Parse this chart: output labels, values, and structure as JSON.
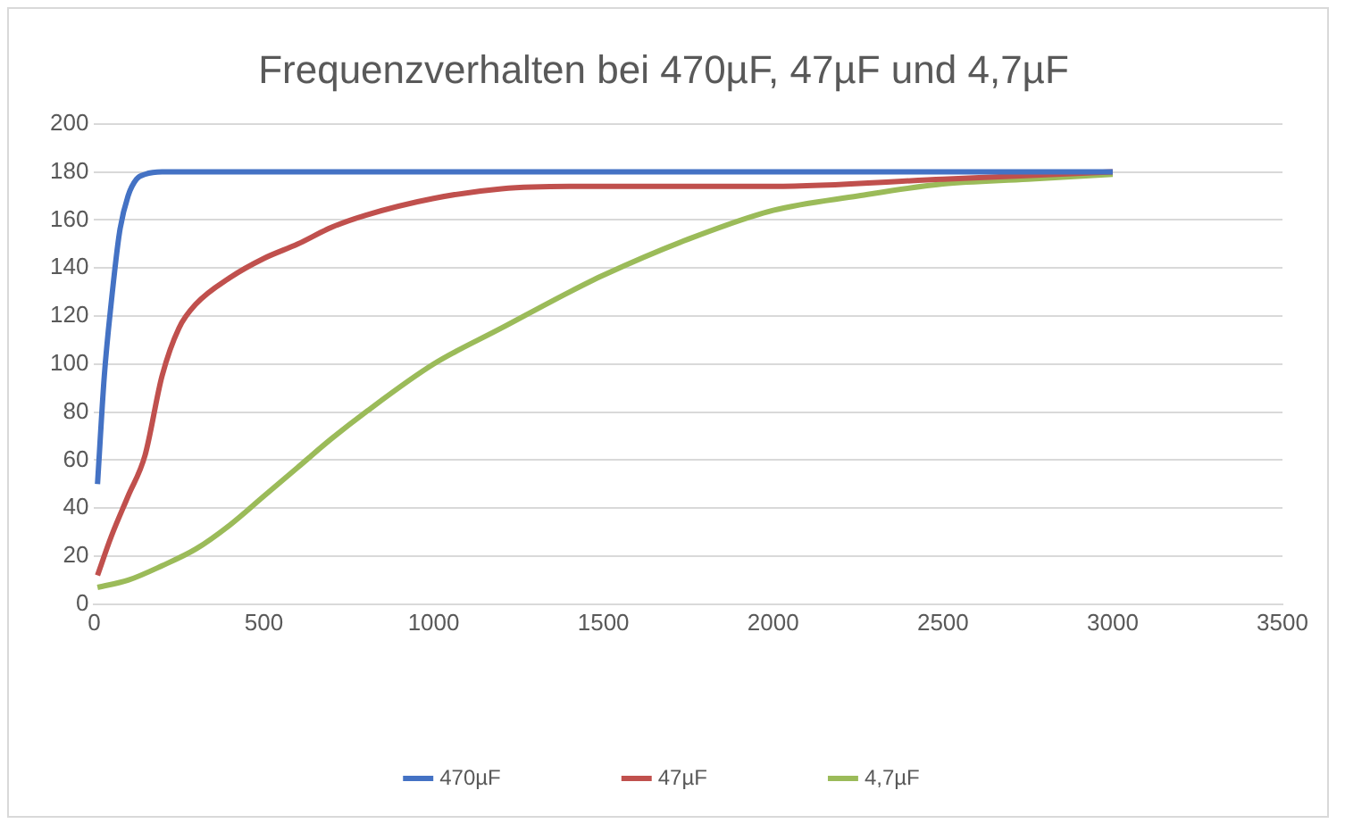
{
  "chart_data": {
    "type": "line",
    "title": "Frequenzverhalten bei 470µF, 47µF und 4,7µF",
    "xlim": [
      0,
      3500
    ],
    "xticks": [
      0,
      500,
      1000,
      1500,
      2000,
      2500,
      3000,
      3500
    ],
    "ylim": [
      0,
      200
    ],
    "yticks": [
      0,
      20,
      40,
      60,
      80,
      100,
      120,
      140,
      160,
      180,
      200
    ],
    "grid": "y",
    "legend": "bottom",
    "marker": "none",
    "line_style": "solid",
    "series": [
      {
        "name": "470µF",
        "color": "#4472c4",
        "x": [
          10,
          30,
          50,
          75,
          100,
          125,
          150,
          200,
          300,
          500,
          1000,
          2000,
          3000
        ],
        "values": [
          50,
          95,
          125,
          155,
          170,
          177,
          179,
          180,
          180,
          180,
          180,
          180,
          180
        ]
      },
      {
        "name": "47µF",
        "color": "#c0504d",
        "x": [
          10,
          50,
          100,
          150,
          200,
          250,
          300,
          400,
          500,
          600,
          700,
          800,
          1000,
          1200,
          1400,
          1500,
          2000,
          2500,
          3000
        ],
        "values": [
          12,
          28,
          45,
          62,
          95,
          115,
          125,
          136,
          144,
          150,
          157,
          162,
          169,
          173,
          174,
          174,
          174,
          177,
          180
        ]
      },
      {
        "name": "4,7µF",
        "color": "#9bbb59",
        "x": [
          10,
          100,
          200,
          300,
          400,
          500,
          600,
          700,
          800,
          1000,
          1200,
          1400,
          1500,
          1750,
          2000,
          2250,
          2500,
          2750,
          3000
        ],
        "values": [
          7,
          10,
          16,
          23,
          33,
          45,
          57,
          69,
          80,
          100,
          115,
          130,
          137,
          152,
          164,
          170,
          175,
          177,
          179
        ]
      }
    ]
  }
}
